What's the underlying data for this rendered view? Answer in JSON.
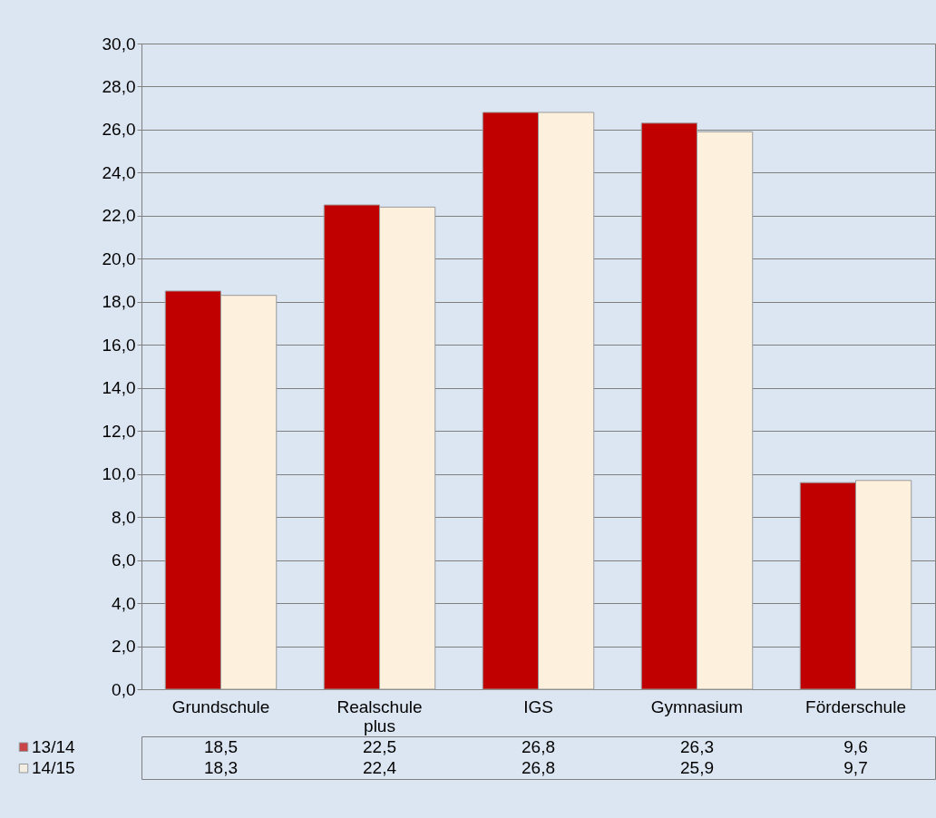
{
  "chart_data": {
    "type": "bar",
    "categories": [
      "Grundschule",
      "Realschule plus",
      "IGS",
      "Gymnasium",
      "Förderschule"
    ],
    "series": [
      {
        "name": "13/14",
        "color": "#c00000",
        "values": [
          18.5,
          22.5,
          26.8,
          26.3,
          9.6
        ],
        "value_labels": [
          "18,5",
          "22,5",
          "26,8",
          "26,3",
          "9,6"
        ]
      },
      {
        "name": "14/15",
        "color": "#fdf0dc",
        "values": [
          18.3,
          22.4,
          26.8,
          25.9,
          9.7
        ],
        "value_labels": [
          "18,3",
          "22,4",
          "26,8",
          "25,9",
          "9,7"
        ]
      }
    ],
    "ylim": [
      0,
      30
    ],
    "yticks": [
      {
        "value": 0,
        "label": "0,0"
      },
      {
        "value": 2,
        "label": "2,0"
      },
      {
        "value": 4,
        "label": "4,0"
      },
      {
        "value": 6,
        "label": "6,0"
      },
      {
        "value": 8,
        "label": "8,0"
      },
      {
        "value": 10,
        "label": "10,0"
      },
      {
        "value": 12,
        "label": "12,0"
      },
      {
        "value": 14,
        "label": "14,0"
      },
      {
        "value": 16,
        "label": "16,0"
      },
      {
        "value": 18,
        "label": "18,0"
      },
      {
        "value": 20,
        "label": "20,0"
      },
      {
        "value": 22,
        "label": "22,0"
      },
      {
        "value": 24,
        "label": "24,0"
      },
      {
        "value": 26,
        "label": "26,0"
      },
      {
        "value": 28,
        "label": "28,0"
      },
      {
        "value": 30,
        "label": "30,0"
      }
    ],
    "grid": "y",
    "legend": "bottom left"
  }
}
